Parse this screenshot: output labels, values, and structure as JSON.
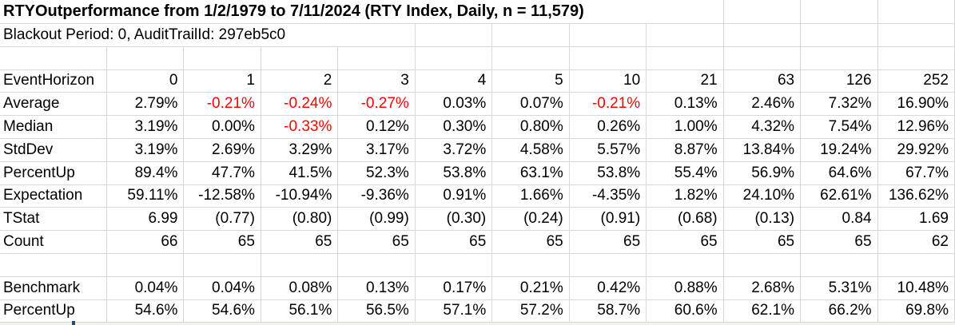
{
  "sheet": {
    "title": "RTYOutperformance from 1/2/1979 to 7/11/2024 (RTY Index, Daily, n = 11,579)",
    "subtitle": "Blackout Period: 0, AuditTrailId: 297eb5c0",
    "colors": {
      "background": "#FFFFFF",
      "text": "#000000",
      "negative_text": "#FF0000",
      "gridline": "#D8D8D8",
      "edge_artifact": "#1F4E79"
    },
    "table": {
      "header": {
        "label": "EventHorizon",
        "values": [
          "0",
          "1",
          "2",
          "3",
          "4",
          "5",
          "10",
          "21",
          "63",
          "126",
          "252"
        ]
      },
      "stat_rows": [
        {
          "label": "Average",
          "values": [
            "2.79%",
            "-0.21%",
            "-0.24%",
            "-0.27%",
            "0.03%",
            "0.07%",
            "-0.21%",
            "0.13%",
            "2.46%",
            "7.32%",
            "16.90%"
          ],
          "negatives_red": true
        },
        {
          "label": "Median",
          "values": [
            "3.19%",
            "0.00%",
            "-0.33%",
            "0.12%",
            "0.30%",
            "0.80%",
            "0.26%",
            "1.00%",
            "4.32%",
            "7.54%",
            "12.96%"
          ],
          "negatives_red": true
        },
        {
          "label": "StdDev",
          "values": [
            "3.19%",
            "2.69%",
            "3.29%",
            "3.17%",
            "3.72%",
            "4.58%",
            "5.57%",
            "8.87%",
            "13.84%",
            "19.24%",
            "29.92%"
          ],
          "negatives_red": false
        },
        {
          "label": "PercentUp",
          "values": [
            "89.4%",
            "47.7%",
            "41.5%",
            "52.3%",
            "53.8%",
            "63.1%",
            "53.8%",
            "55.4%",
            "56.9%",
            "64.6%",
            "67.7%"
          ],
          "negatives_red": false
        },
        {
          "label": "Expectation",
          "values": [
            "59.11%",
            "-12.58%",
            "-10.94%",
            "-9.36%",
            "0.91%",
            "1.66%",
            "-4.35%",
            "1.82%",
            "24.10%",
            "62.61%",
            "136.62%"
          ],
          "negatives_red": false
        },
        {
          "label": "TStat",
          "values": [
            "6.99",
            "(0.77)",
            "(0.80)",
            "(0.99)",
            "(0.30)",
            "(0.24)",
            "(0.91)",
            "(0.68)",
            "(0.13)",
            "0.84",
            "1.69"
          ],
          "negatives_red": false
        },
        {
          "label": "Count",
          "values": [
            "66",
            "65",
            "65",
            "65",
            "65",
            "65",
            "65",
            "65",
            "65",
            "65",
            "62"
          ],
          "negatives_red": false
        }
      ],
      "benchmark_rows": [
        {
          "label": "Benchmark",
          "values": [
            "0.04%",
            "0.04%",
            "0.08%",
            "0.13%",
            "0.17%",
            "0.21%",
            "0.42%",
            "0.88%",
            "2.68%",
            "5.31%",
            "10.48%"
          ],
          "negatives_red": false
        },
        {
          "label": "PercentUp",
          "values": [
            "54.6%",
            "54.6%",
            "56.1%",
            "56.5%",
            "57.1%",
            "57.2%",
            "58.7%",
            "60.6%",
            "62.1%",
            "66.2%",
            "69.8%"
          ],
          "negatives_red": false
        }
      ]
    }
  }
}
